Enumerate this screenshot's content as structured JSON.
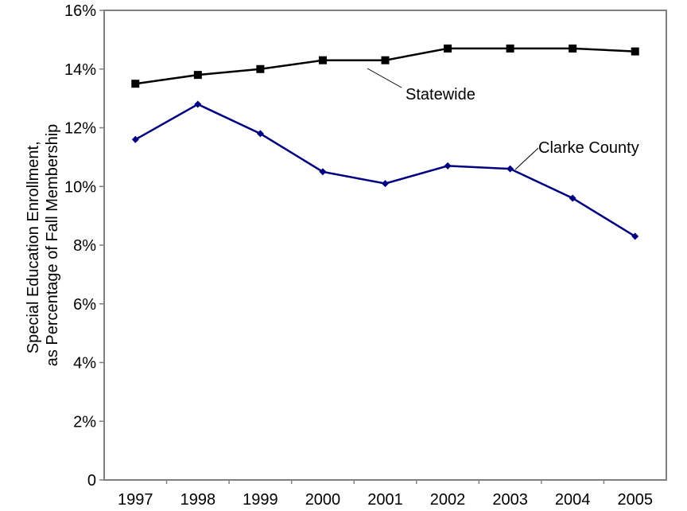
{
  "chart_data": {
    "type": "line",
    "title": "",
    "xlabel": "",
    "ylabel_lines": [
      "Special Education Enrollment,",
      "as Percentage of Fall Membership"
    ],
    "x": [
      "1997",
      "1998",
      "1999",
      "2000",
      "2001",
      "2002",
      "2003",
      "2004",
      "2005"
    ],
    "ylim": [
      0,
      16
    ],
    "yticks": [
      0,
      2,
      4,
      6,
      8,
      10,
      12,
      14,
      16
    ],
    "ytick_labels": [
      "0",
      "2%",
      "4%",
      "6%",
      "8%",
      "10%",
      "12%",
      "14%",
      "16%"
    ],
    "grid": false,
    "legend": "none (series labeled directly with leader lines)",
    "series": [
      {
        "name": "Statewide",
        "marker": "square",
        "color": "#000000",
        "values": [
          13.5,
          13.8,
          14.0,
          14.3,
          14.3,
          14.7,
          14.7,
          14.7,
          14.6
        ]
      },
      {
        "name": "Clarke County",
        "marker": "diamond",
        "color": "#000080",
        "values": [
          11.6,
          12.8,
          11.8,
          10.5,
          10.1,
          10.7,
          10.6,
          9.6,
          8.3
        ]
      }
    ]
  }
}
